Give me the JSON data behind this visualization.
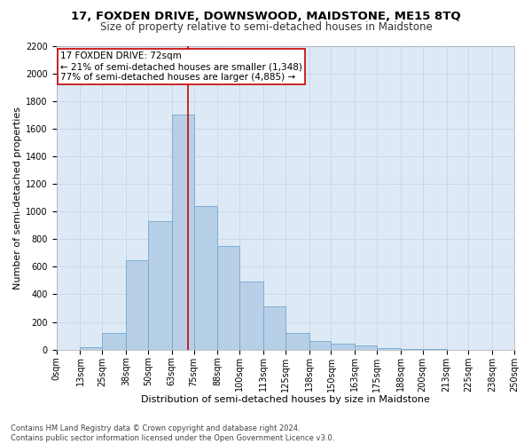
{
  "title1": "17, FOXDEN DRIVE, DOWNSWOOD, MAIDSTONE, ME15 8TQ",
  "title2": "Size of property relative to semi-detached houses in Maidstone",
  "xlabel": "Distribution of semi-detached houses by size in Maidstone",
  "ylabel": "Number of semi-detached properties",
  "footnote": "Contains HM Land Registry data © Crown copyright and database right 2024.\nContains public sector information licensed under the Open Government Licence v3.0.",
  "bin_edges": [
    0,
    13,
    25,
    38,
    50,
    63,
    75,
    88,
    100,
    113,
    125,
    138,
    150,
    163,
    175,
    188,
    200,
    213,
    225,
    238,
    250
  ],
  "bar_heights": [
    0,
    20,
    120,
    650,
    930,
    1700,
    1040,
    750,
    490,
    310,
    120,
    65,
    40,
    30,
    10,
    5,
    2,
    0,
    0,
    0
  ],
  "tick_labels": [
    "0sqm",
    "13sqm",
    "25sqm",
    "38sqm",
    "50sqm",
    "63sqm",
    "75sqm",
    "88sqm",
    "100sqm",
    "113sqm",
    "125sqm",
    "138sqm",
    "150sqm",
    "163sqm",
    "175sqm",
    "188sqm",
    "200sqm",
    "213sqm",
    "225sqm",
    "238sqm",
    "250sqm"
  ],
  "bar_color": "#b8cfe8",
  "bar_edge_color": "#6fa8d0",
  "vline_color": "#cc0000",
  "vline_x": 72,
  "annotation_title": "17 FOXDEN DRIVE: 72sqm",
  "annotation_line1": "← 21% of semi-detached houses are smaller (1,348)",
  "annotation_line2": "77% of semi-detached houses are larger (4,885) →",
  "annotation_box_color": "#ffffff",
  "annotation_box_edge": "#cc0000",
  "ylim": [
    0,
    2200
  ],
  "yticks": [
    0,
    200,
    400,
    600,
    800,
    1000,
    1200,
    1400,
    1600,
    1800,
    2000,
    2200
  ],
  "grid_color": "#c8d8eb",
  "bg_color": "#ddeaf5",
  "title1_fontsize": 9.5,
  "title2_fontsize": 8.5,
  "tick_fontsize": 7,
  "ylabel_fontsize": 8,
  "xlabel_fontsize": 8,
  "footnote_fontsize": 6,
  "annotation_fontsize": 7.5
}
